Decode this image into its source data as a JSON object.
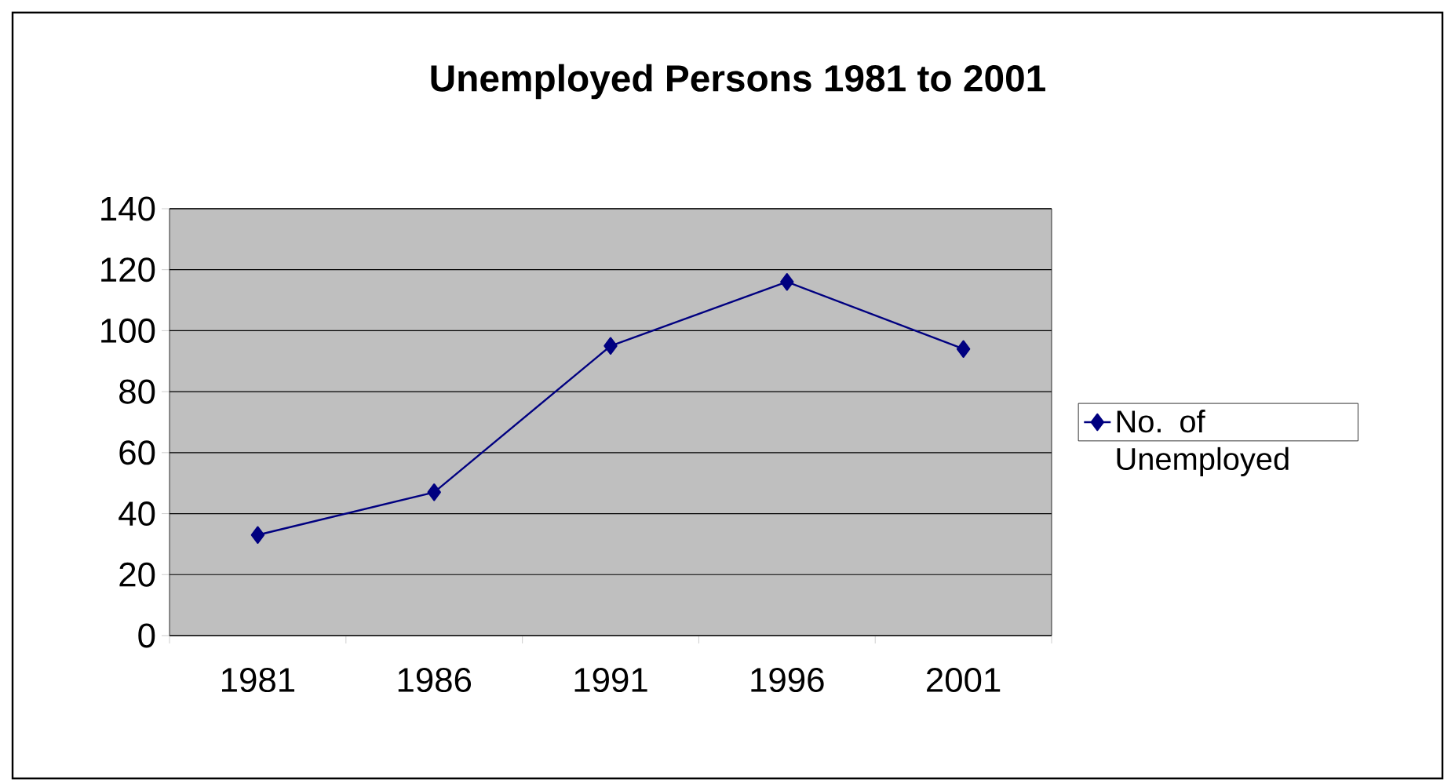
{
  "chart_data": {
    "type": "line",
    "title": "Unemployed Persons 1981 to 2001",
    "categories": [
      "1981",
      "1986",
      "1991",
      "1996",
      "2001"
    ],
    "series": [
      {
        "name": "No. of Unemployed",
        "color": "#000080",
        "values": [
          33,
          47,
          95,
          116,
          94
        ]
      }
    ],
    "ylim": [
      0,
      140
    ],
    "yticks": [
      0,
      20,
      40,
      60,
      80,
      100,
      120,
      140
    ],
    "grid": "y",
    "legend": "right",
    "marker": "diamond",
    "line_style": "solid"
  }
}
